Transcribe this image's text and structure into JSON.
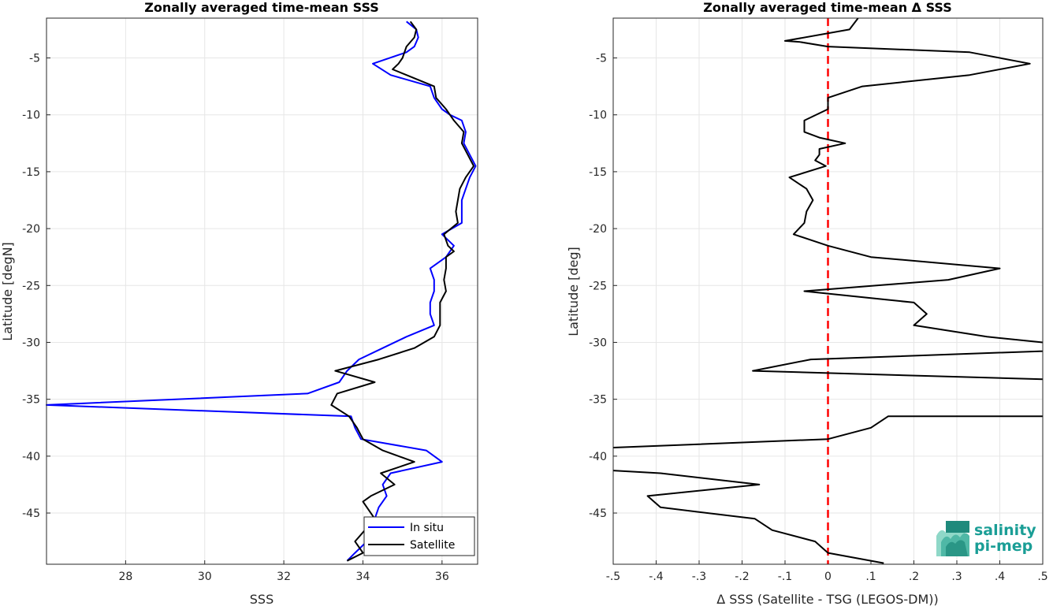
{
  "chart_data": [
    {
      "type": "line",
      "title": "Zonally averaged time-mean SSS",
      "xlabel": "SSS",
      "ylabel": "Latitude [degN]",
      "xlim": [
        26,
        36.9
      ],
      "ylim": [
        -49.5,
        -1.5
      ],
      "xticks": [
        28,
        30,
        32,
        34,
        36
      ],
      "yticks": [
        -5,
        -10,
        -15,
        -20,
        -25,
        -30,
        -35,
        -40,
        -45
      ],
      "grid": true,
      "legend_position": "bottom-right",
      "series": [
        {
          "name": "In situ",
          "color": "#0000ff",
          "points": [
            [
              35.1,
              -1.8
            ],
            [
              35.35,
              -2.5
            ],
            [
              35.4,
              -3.2
            ],
            [
              35.3,
              -4.0
            ],
            [
              35.1,
              -4.5
            ],
            [
              34.25,
              -5.5
            ],
            [
              34.7,
              -6.5
            ],
            [
              35.7,
              -7.5
            ],
            [
              35.8,
              -8.5
            ],
            [
              36.0,
              -9.5
            ],
            [
              36.2,
              -10.0
            ],
            [
              36.5,
              -10.5
            ],
            [
              36.6,
              -11.5
            ],
            [
              36.55,
              -12.5
            ],
            [
              36.7,
              -13.5
            ],
            [
              36.85,
              -14.5
            ],
            [
              36.7,
              -15.5
            ],
            [
              36.6,
              -16.5
            ],
            [
              36.5,
              -17.5
            ],
            [
              36.5,
              -18.5
            ],
            [
              36.5,
              -19.5
            ],
            [
              36.0,
              -20.5
            ],
            [
              36.3,
              -21.5
            ],
            [
              36.1,
              -22.5
            ],
            [
              35.7,
              -23.5
            ],
            [
              35.8,
              -24.5
            ],
            [
              35.8,
              -25.5
            ],
            [
              35.7,
              -26.5
            ],
            [
              35.7,
              -27.5
            ],
            [
              35.8,
              -28.5
            ],
            [
              35.1,
              -29.5
            ],
            [
              34.5,
              -30.5
            ],
            [
              33.9,
              -31.5
            ],
            [
              33.6,
              -32.5
            ],
            [
              33.4,
              -33.5
            ],
            [
              32.6,
              -34.5
            ],
            [
              26.0,
              -35.5
            ],
            [
              33.7,
              -36.5
            ],
            [
              33.8,
              -37.5
            ],
            [
              33.95,
              -38.5
            ],
            [
              35.6,
              -39.5
            ],
            [
              36.0,
              -40.5
            ],
            [
              34.7,
              -41.5
            ],
            [
              34.5,
              -42.5
            ],
            [
              34.6,
              -43.5
            ],
            [
              34.4,
              -44.5
            ],
            [
              34.3,
              -45.5
            ],
            [
              34.2,
              -46.5
            ],
            [
              34.1,
              -47.5
            ],
            [
              33.8,
              -48.5
            ],
            [
              33.6,
              -49.2
            ]
          ]
        },
        {
          "name": "Satellite",
          "color": "#000000",
          "points": [
            [
              35.2,
              -1.8
            ],
            [
              35.35,
              -2.5
            ],
            [
              35.3,
              -3.2
            ],
            [
              35.1,
              -4.0
            ],
            [
              35.0,
              -5.0
            ],
            [
              34.9,
              -5.5
            ],
            [
              34.75,
              -6.0
            ],
            [
              35.1,
              -6.5
            ],
            [
              35.8,
              -7.5
            ],
            [
              35.85,
              -8.5
            ],
            [
              36.1,
              -9.5
            ],
            [
              36.3,
              -10.5
            ],
            [
              36.55,
              -11.5
            ],
            [
              36.5,
              -12.5
            ],
            [
              36.65,
              -13.5
            ],
            [
              36.8,
              -14.5
            ],
            [
              36.6,
              -15.5
            ],
            [
              36.45,
              -16.5
            ],
            [
              36.4,
              -17.5
            ],
            [
              36.35,
              -18.5
            ],
            [
              36.4,
              -19.5
            ],
            [
              36.05,
              -20.5
            ],
            [
              36.15,
              -21.5
            ],
            [
              36.3,
              -22.0
            ],
            [
              36.1,
              -22.5
            ],
            [
              36.1,
              -23.5
            ],
            [
              36.05,
              -24.5
            ],
            [
              36.1,
              -25.5
            ],
            [
              35.95,
              -26.5
            ],
            [
              35.95,
              -27.5
            ],
            [
              35.95,
              -28.5
            ],
            [
              35.8,
              -29.5
            ],
            [
              35.3,
              -30.5
            ],
            [
              34.4,
              -31.5
            ],
            [
              33.3,
              -32.5
            ],
            [
              34.3,
              -33.5
            ],
            [
              33.35,
              -34.5
            ],
            [
              33.2,
              -35.5
            ],
            [
              33.65,
              -36.5
            ],
            [
              33.85,
              -37.5
            ],
            [
              34.0,
              -38.5
            ],
            [
              34.5,
              -39.5
            ],
            [
              35.3,
              -40.5
            ],
            [
              34.45,
              -41.5
            ],
            [
              34.8,
              -42.5
            ],
            [
              34.2,
              -43.5
            ],
            [
              34.0,
              -44.0
            ],
            [
              34.3,
              -45.5
            ],
            [
              34.05,
              -46.5
            ],
            [
              33.8,
              -47.5
            ],
            [
              34.0,
              -48.5
            ],
            [
              33.6,
              -49.2
            ]
          ]
        }
      ]
    },
    {
      "type": "line",
      "title": "Zonally averaged time-mean Δ SSS",
      "xlabel": "Δ SSS (Satellite - TSG (LEGOS-DM))",
      "ylabel": "Latitude [deg]",
      "xlim": [
        -0.5,
        0.5
      ],
      "ylim": [
        -49.5,
        -1.5
      ],
      "xticks": [
        -0.5,
        -0.4,
        -0.3,
        -0.2,
        -0.1,
        0,
        0.1,
        0.2,
        0.3,
        0.4,
        0.5
      ],
      "yticks": [
        -5,
        -10,
        -15,
        -20,
        -25,
        -30,
        -35,
        -40,
        -45
      ],
      "grid": true,
      "reference_line": {
        "x": 0,
        "color": "#ff0000",
        "style": "dashed"
      },
      "series": [
        {
          "color": "#000000",
          "points": [
            [
              0.07,
              -1.5
            ],
            [
              0.05,
              -2.5
            ],
            [
              -0.1,
              -3.5
            ],
            [
              -0.065,
              -3.6
            ],
            [
              0.0,
              -4.0
            ],
            [
              0.33,
              -4.5
            ],
            [
              0.47,
              -5.5
            ],
            [
              0.33,
              -6.5
            ],
            [
              0.08,
              -7.5
            ],
            [
              0.0,
              -8.5
            ],
            [
              0.0,
              -9.5
            ],
            [
              -0.055,
              -10.5
            ],
            [
              -0.055,
              -11.5
            ],
            [
              -0.02,
              -12.0
            ],
            [
              0.04,
              -12.5
            ],
            [
              -0.02,
              -13.0
            ],
            [
              -0.02,
              -13.5
            ],
            [
              -0.03,
              -14.0
            ],
            [
              -0.005,
              -14.5
            ],
            [
              -0.09,
              -15.5
            ],
            [
              -0.05,
              -16.5
            ],
            [
              -0.035,
              -17.5
            ],
            [
              -0.05,
              -18.5
            ],
            [
              -0.055,
              -19.5
            ],
            [
              -0.08,
              -20.5
            ],
            [
              0.0,
              -21.5
            ],
            [
              0.1,
              -22.5
            ],
            [
              0.4,
              -23.5
            ],
            [
              0.28,
              -24.5
            ],
            [
              -0.055,
              -25.5
            ],
            [
              0.2,
              -26.5
            ],
            [
              0.23,
              -27.5
            ],
            [
              0.2,
              -28.5
            ],
            [
              0.37,
              -29.5
            ],
            [
              0.5,
              -30.0
            ],
            [
              0.55,
              -30.7
            ],
            [
              -0.04,
              -31.5
            ],
            [
              -0.175,
              -32.5
            ],
            [
              0.55,
              -33.3
            ],
            [
              0.5,
              -36.5
            ],
            [
              0.14,
              -36.5
            ],
            [
              0.1,
              -37.5
            ],
            [
              0.0,
              -38.5
            ],
            [
              -0.53,
              -39.3
            ],
            [
              -0.53,
              -41.2
            ],
            [
              -0.39,
              -41.5
            ],
            [
              -0.16,
              -42.5
            ],
            [
              -0.42,
              -43.5
            ],
            [
              -0.39,
              -44.5
            ],
            [
              -0.17,
              -45.5
            ],
            [
              -0.13,
              -46.5
            ],
            [
              -0.03,
              -47.5
            ],
            [
              0.0,
              -48.5
            ],
            [
              0.13,
              -49.4
            ]
          ]
        }
      ]
    }
  ],
  "logo": {
    "line1": "salinity",
    "line2": "pi-mep"
  }
}
